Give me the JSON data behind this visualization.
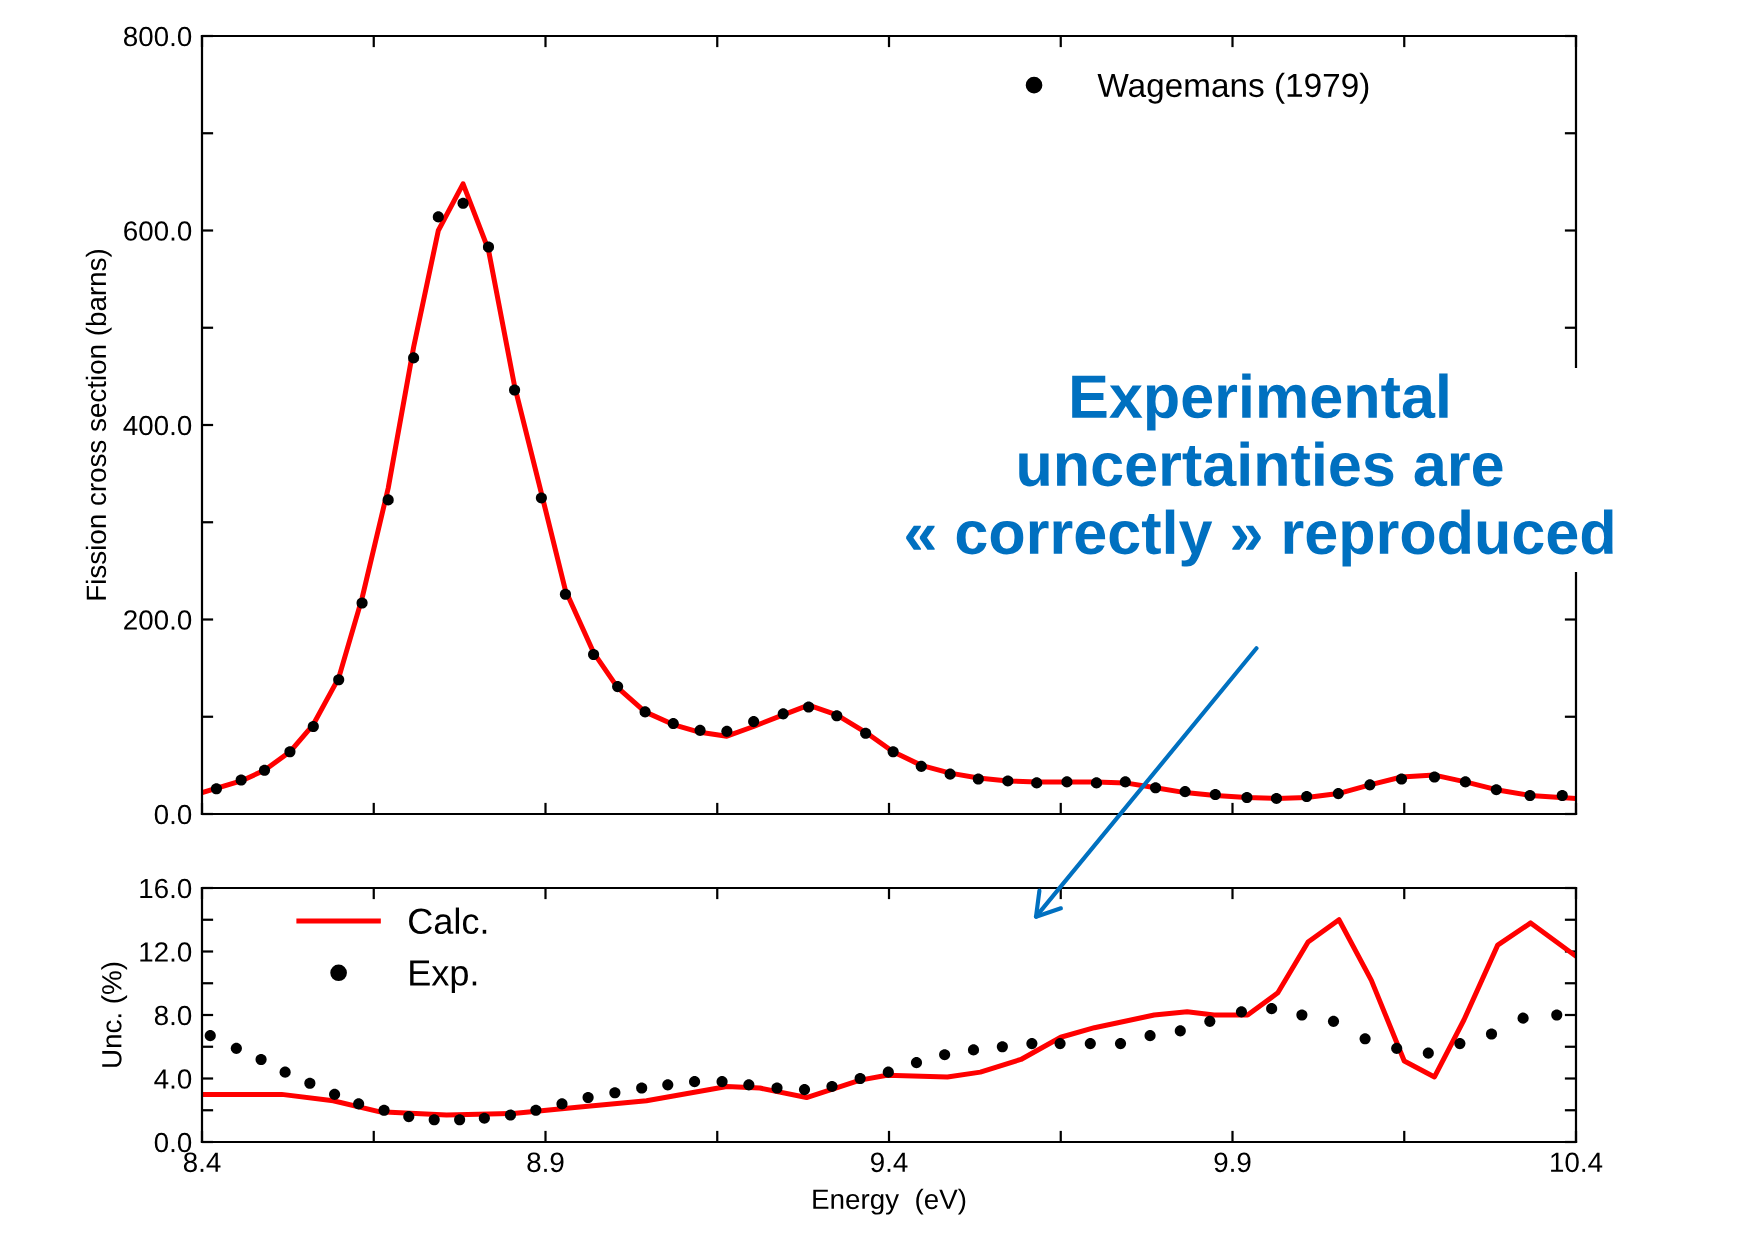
{
  "chart_data": [
    {
      "type": "line",
      "ylabel": "Fission cross section (barns)",
      "xlim": [
        8.4,
        10.4
      ],
      "ylim": [
        0,
        800
      ],
      "xticks": [
        {
          "value": 8.4,
          "label": null
        },
        {
          "value": 8.65,
          "label": null
        },
        {
          "value": 8.9,
          "label": null
        },
        {
          "value": 9.15,
          "label": null
        },
        {
          "value": 9.4,
          "label": null
        },
        {
          "value": 9.65,
          "label": null
        },
        {
          "value": 9.9,
          "label": null
        },
        {
          "value": 10.15,
          "label": null
        },
        {
          "value": 10.4,
          "label": null
        }
      ],
      "yticks": [
        {
          "value": 0,
          "label": "0.0"
        },
        {
          "value": 100,
          "label": null
        },
        {
          "value": 200,
          "label": "200.0"
        },
        {
          "value": 300,
          "label": null
        },
        {
          "value": 400,
          "label": "400.0"
        },
        {
          "value": 500,
          "label": null
        },
        {
          "value": 600,
          "label": "600.0"
        },
        {
          "value": 700,
          "label": null
        },
        {
          "value": 800,
          "label": "800.0"
        }
      ],
      "tick_labels": "y",
      "grid": false,
      "legend": "top right",
      "annotations": [
        "Experimental\nuncertainties are\n« correctly » reproduced"
      ],
      "series": [
        {
          "name": "Wagemans (1979)",
          "type": "scatter",
          "marker": "circle",
          "color": "#000000",
          "x": [
            8.421,
            8.457,
            8.491,
            8.528,
            8.562,
            8.599,
            8.633,
            8.671,
            8.708,
            8.744,
            8.78,
            8.817,
            8.855,
            8.894,
            8.929,
            8.97,
            9.005,
            9.045,
            9.086,
            9.125,
            9.164,
            9.203,
            9.246,
            9.283,
            9.324,
            9.366,
            9.406,
            9.447,
            9.489,
            9.53,
            9.573,
            9.615,
            9.659,
            9.702,
            9.744,
            9.788,
            9.831,
            9.875,
            9.921,
            9.964,
            10.008,
            10.054,
            10.1,
            10.146,
            10.194,
            10.239,
            10.284,
            10.333,
            10.38
          ],
          "values": [
            26,
            35,
            45,
            64,
            90,
            138,
            217,
            323,
            469,
            614,
            628,
            583,
            436,
            325,
            226,
            164,
            131,
            105,
            93,
            86,
            85,
            95,
            103,
            110,
            101,
            83,
            64,
            49,
            41,
            36,
            34,
            32,
            33,
            32,
            33,
            27,
            23,
            20,
            17,
            16,
            18,
            21,
            30,
            36,
            38,
            33,
            25,
            19,
            19
          ]
        },
        {
          "color": "#ff0000",
          "line_style": "solid",
          "x": [
            8.4,
            8.457,
            8.491,
            8.528,
            8.562,
            8.599,
            8.633,
            8.671,
            8.708,
            8.744,
            8.78,
            8.817,
            8.855,
            8.894,
            8.929,
            8.97,
            9.005,
            9.045,
            9.086,
            9.125,
            9.164,
            9.203,
            9.246,
            9.283,
            9.324,
            9.366,
            9.406,
            9.447,
            9.489,
            9.53,
            9.573,
            9.615,
            9.659,
            9.702,
            9.744,
            9.788,
            9.831,
            9.875,
            9.921,
            9.964,
            10.008,
            10.054,
            10.1,
            10.146,
            10.194,
            10.239,
            10.284,
            10.333,
            10.4
          ],
          "values": [
            22,
            34,
            45,
            64,
            92,
            140,
            222,
            335,
            480,
            600,
            648,
            580,
            440,
            330,
            230,
            166,
            130,
            105,
            92,
            84,
            80,
            90,
            102,
            112,
            102,
            84,
            64,
            50,
            42,
            37,
            34,
            33,
            33,
            33,
            32,
            27,
            22,
            19,
            17,
            16,
            17,
            21,
            30,
            38,
            40,
            33,
            25,
            19,
            16
          ]
        }
      ]
    },
    {
      "type": "line",
      "xlabel": "Energy  (eV)",
      "ylabel": "Unc. (%)",
      "xlim": [
        8.4,
        10.4
      ],
      "ylim": [
        0,
        16
      ],
      "xticks": [
        {
          "value": 8.4,
          "label": "8.4"
        },
        {
          "value": 8.65,
          "label": null
        },
        {
          "value": 8.9,
          "label": "8.9"
        },
        {
          "value": 9.15,
          "label": null
        },
        {
          "value": 9.4,
          "label": "9.4"
        },
        {
          "value": 9.65,
          "label": null
        },
        {
          "value": 9.9,
          "label": "9.9"
        },
        {
          "value": 10.15,
          "label": null
        },
        {
          "value": 10.4,
          "label": "10.4"
        }
      ],
      "yticks": [
        {
          "value": 0,
          "label": "0.0"
        },
        {
          "value": 2,
          "label": null
        },
        {
          "value": 4,
          "label": "4.0"
        },
        {
          "value": 6,
          "label": null
        },
        {
          "value": 8,
          "label": "8.0"
        },
        {
          "value": 10,
          "label": null
        },
        {
          "value": 12,
          "label": "12.0"
        },
        {
          "value": 14,
          "label": null
        },
        {
          "value": 16,
          "label": "16.0"
        }
      ],
      "grid": false,
      "legend": "top left",
      "series": [
        {
          "name": "Calc.",
          "color": "#ff0000",
          "line_style": "solid",
          "x": [
            8.4,
            8.516,
            8.591,
            8.659,
            8.756,
            8.853,
            8.95,
            9.047,
            9.164,
            9.212,
            9.28,
            9.358,
            9.397,
            9.485,
            9.533,
            9.592,
            9.65,
            9.699,
            9.786,
            9.834,
            9.873,
            9.922,
            9.966,
            10.01,
            10.055,
            10.102,
            10.15,
            10.194,
            10.237,
            10.286,
            10.334,
            10.4
          ],
          "values": [
            3.0,
            3.0,
            2.6,
            1.9,
            1.7,
            1.8,
            2.2,
            2.6,
            3.5,
            3.4,
            2.8,
            3.9,
            4.2,
            4.1,
            4.4,
            5.2,
            6.6,
            7.2,
            8.0,
            8.2,
            8.0,
            8.0,
            9.4,
            12.6,
            14.0,
            10.2,
            5.1,
            4.1,
            7.7,
            12.4,
            13.8,
            11.7
          ]
        },
        {
          "name": "Exp.",
          "type": "scatter",
          "marker": "circle",
          "color": "#000000",
          "x": [
            8.412,
            8.45,
            8.486,
            8.521,
            8.557,
            8.593,
            8.628,
            8.665,
            8.701,
            8.738,
            8.775,
            8.811,
            8.849,
            8.886,
            8.924,
            8.962,
            9.001,
            9.04,
            9.078,
            9.117,
            9.157,
            9.196,
            9.237,
            9.277,
            9.317,
            9.358,
            9.399,
            9.44,
            9.481,
            9.523,
            9.565,
            9.608,
            9.649,
            9.693,
            9.737,
            9.78,
            9.824,
            9.867,
            9.913,
            9.957,
            10.001,
            10.047,
            10.093,
            10.139,
            10.185,
            10.231,
            10.277,
            10.323,
            10.372
          ],
          "values": [
            6.7,
            5.9,
            5.2,
            4.4,
            3.7,
            3.0,
            2.4,
            2.0,
            1.6,
            1.4,
            1.4,
            1.5,
            1.7,
            2.0,
            2.4,
            2.8,
            3.1,
            3.4,
            3.6,
            3.8,
            3.8,
            3.6,
            3.4,
            3.3,
            3.5,
            4.0,
            4.4,
            5.0,
            5.5,
            5.8,
            6.0,
            6.2,
            6.2,
            6.2,
            6.2,
            6.7,
            7.0,
            7.6,
            8.2,
            8.4,
            8.0,
            7.6,
            6.5,
            5.9,
            5.6,
            6.2,
            6.8,
            7.8,
            8.0
          ]
        }
      ]
    }
  ]
}
